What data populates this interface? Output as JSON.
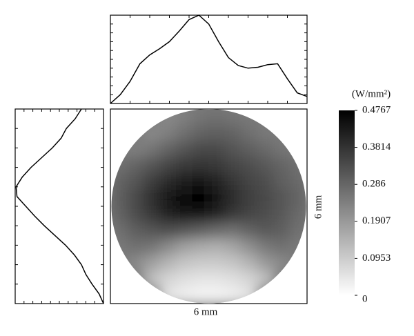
{
  "chart_data": [
    {
      "type": "heatmap",
      "x_label": "6 mm",
      "y_label": "6 mm",
      "colorbar_label": "(W/mm²)",
      "zlim": [
        0,
        0.4767
      ],
      "zticks": [
        0,
        0.0953,
        0.1907,
        0.286,
        0.3814,
        0.4767
      ],
      "z": [
        [
          null,
          null,
          null,
          0.22,
          0.24,
          0.26,
          0.27,
          0.26,
          0.25,
          null,
          null,
          null
        ],
        [
          null,
          null,
          0.22,
          0.24,
          0.27,
          0.29,
          0.3,
          0.29,
          0.27,
          0.25,
          null,
          null
        ],
        [
          null,
          0.24,
          0.26,
          0.29,
          0.32,
          0.34,
          0.34,
          0.32,
          0.3,
          0.28,
          0.26,
          null
        ],
        [
          0.27,
          0.29,
          0.32,
          0.35,
          0.37,
          0.38,
          0.37,
          0.35,
          0.33,
          0.31,
          0.29,
          0.27
        ],
        [
          0.29,
          0.32,
          0.36,
          0.4,
          0.42,
          0.43,
          0.41,
          0.38,
          0.35,
          0.33,
          0.3,
          0.28
        ],
        [
          0.3,
          0.34,
          0.39,
          0.43,
          0.46,
          0.47,
          0.44,
          0.4,
          0.36,
          0.34,
          0.32,
          0.29
        ],
        [
          0.29,
          0.33,
          0.37,
          0.41,
          0.44,
          0.44,
          0.41,
          0.37,
          0.35,
          0.33,
          0.31,
          0.28
        ],
        [
          0.27,
          0.3,
          0.32,
          0.33,
          0.32,
          0.3,
          0.28,
          0.27,
          0.29,
          0.31,
          0.3,
          0.27
        ],
        [
          0.25,
          0.27,
          0.26,
          0.22,
          0.18,
          0.16,
          0.15,
          0.17,
          0.21,
          0.25,
          0.27,
          0.25
        ],
        [
          null,
          0.22,
          0.18,
          0.14,
          0.11,
          0.1,
          0.1,
          0.11,
          0.14,
          0.19,
          0.22,
          null
        ],
        [
          null,
          null,
          0.12,
          0.08,
          0.06,
          0.05,
          0.05,
          0.06,
          0.08,
          0.12,
          null,
          null
        ],
        [
          null,
          null,
          null,
          0.05,
          0.03,
          0.02,
          0.02,
          0.03,
          0.05,
          null,
          null,
          null
        ]
      ]
    },
    {
      "type": "line",
      "orientation": "horizontal",
      "x": [
        0,
        0.05,
        0.1,
        0.15,
        0.2,
        0.25,
        0.3,
        0.35,
        0.4,
        0.45,
        0.5,
        0.55,
        0.6,
        0.65,
        0.7,
        0.75,
        0.8,
        0.85,
        0.9,
        0.95,
        1
      ],
      "values": [
        0,
        0.1,
        0.25,
        0.45,
        0.55,
        0.62,
        0.7,
        0.82,
        0.95,
        1.0,
        0.9,
        0.7,
        0.52,
        0.43,
        0.4,
        0.41,
        0.44,
        0.45,
        0.28,
        0.12,
        0.08
      ],
      "xlim": [
        0,
        1
      ],
      "ylim": [
        0,
        1
      ],
      "xticks": [
        0,
        0.1,
        0.2,
        0.3,
        0.4,
        0.5,
        0.6,
        0.7,
        0.8,
        0.9,
        1
      ],
      "yticks": [
        0,
        0.1,
        0.2,
        0.3,
        0.4,
        0.5,
        0.6,
        0.7,
        0.8,
        0.9,
        1
      ]
    },
    {
      "type": "line",
      "orientation": "vertical",
      "x": [
        0,
        0.05,
        0.1,
        0.15,
        0.2,
        0.25,
        0.3,
        0.35,
        0.4,
        0.45,
        0.5,
        0.55,
        0.6,
        0.65,
        0.7,
        0.75,
        0.8,
        0.85,
        0.9,
        0.95,
        1
      ],
      "values": [
        0.75,
        0.68,
        0.58,
        0.52,
        0.42,
        0.3,
        0.18,
        0.08,
        0.01,
        0.02,
        0.12,
        0.22,
        0.33,
        0.45,
        0.57,
        0.67,
        0.75,
        0.8,
        0.87,
        0.95,
        1.0
      ],
      "xlim": [
        0,
        1
      ],
      "ylim": [
        0,
        1
      ],
      "xticks": [
        0,
        0.1,
        0.2,
        0.3,
        0.4,
        0.5,
        0.6,
        0.7,
        0.8,
        0.9,
        1
      ],
      "yticks": [
        0,
        0.1,
        0.2,
        0.3,
        0.4,
        0.5,
        0.6,
        0.7,
        0.8,
        0.9,
        1
      ]
    }
  ]
}
